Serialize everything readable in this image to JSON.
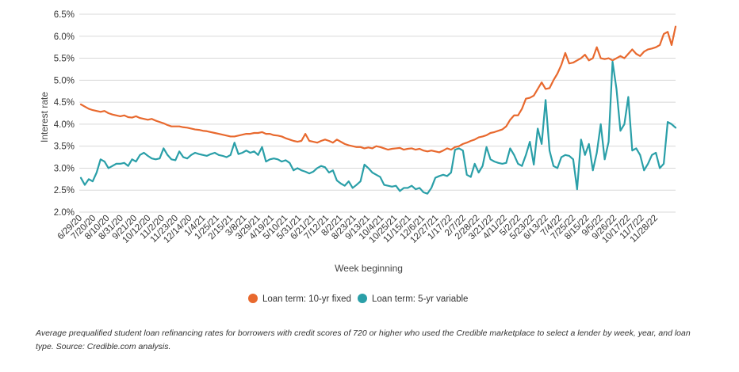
{
  "chart_data": {
    "type": "line",
    "xlabel": "Week beginning",
    "ylabel": "Interest rate",
    "ylim": [
      2.0,
      6.5
    ],
    "y_ticks": [
      "6.5%",
      "6.0%",
      "5.5%",
      "5.0%",
      "4.5%",
      "4.0%",
      "3.5%",
      "3.0%",
      "2.5%",
      "2.0%"
    ],
    "x_ticks": [
      "6/29/20",
      "7/20/20",
      "8/10/20",
      "8/31/20",
      "9/21/20",
      "10/12/20",
      "11/2/20",
      "11/23/20",
      "12/14/20",
      "1/4/21",
      "1/25/21",
      "2/15/21",
      "3/8/21",
      "3/29/21",
      "4/19/21",
      "5/10/21",
      "5/31/21",
      "6/21/21",
      "7/12/21",
      "8/2/21",
      "8/23/21",
      "9/13/21",
      "10/4/21",
      "10/25/21",
      "11/15/21",
      "12/6/21",
      "12/27/21",
      "1/17/22",
      "2/7/22",
      "2/28/22",
      "3/21/22",
      "4/11/22",
      "5/2/22",
      "5/23/22",
      "6/13/22",
      "7/4/22",
      "7/25/22",
      "8/15/22",
      "9/5/22",
      "9/26/22",
      "10/17/22",
      "11/7/22",
      "11/28/22"
    ],
    "grid": true,
    "legend_position": "bottom-center",
    "series": [
      {
        "name": "Loan term: 10-yr fixed",
        "color": "#E8692E",
        "values": [
          4.45,
          4.4,
          4.35,
          4.32,
          4.3,
          4.28,
          4.3,
          4.25,
          4.22,
          4.2,
          4.18,
          4.2,
          4.16,
          4.15,
          4.18,
          4.14,
          4.12,
          4.1,
          4.12,
          4.08,
          4.05,
          4.02,
          3.98,
          3.95,
          3.95,
          3.95,
          3.93,
          3.92,
          3.9,
          3.88,
          3.87,
          3.85,
          3.84,
          3.82,
          3.8,
          3.78,
          3.76,
          3.74,
          3.72,
          3.72,
          3.74,
          3.76,
          3.78,
          3.78,
          3.8,
          3.8,
          3.82,
          3.78,
          3.78,
          3.75,
          3.74,
          3.72,
          3.68,
          3.65,
          3.62,
          3.6,
          3.62,
          3.78,
          3.62,
          3.6,
          3.58,
          3.62,
          3.65,
          3.62,
          3.58,
          3.65,
          3.6,
          3.55,
          3.52,
          3.5,
          3.48,
          3.48,
          3.45,
          3.47,
          3.45,
          3.5,
          3.48,
          3.45,
          3.42,
          3.44,
          3.45,
          3.46,
          3.42,
          3.44,
          3.45,
          3.42,
          3.44,
          3.4,
          3.38,
          3.4,
          3.38,
          3.36,
          3.4,
          3.45,
          3.42,
          3.48,
          3.5,
          3.55,
          3.58,
          3.62,
          3.65,
          3.7,
          3.72,
          3.75,
          3.8,
          3.82,
          3.85,
          3.88,
          3.95,
          4.1,
          4.2,
          4.2,
          4.35,
          4.58,
          4.6,
          4.65,
          4.8,
          4.95,
          4.8,
          4.82,
          5.0,
          5.15,
          5.35,
          5.62,
          5.38,
          5.4,
          5.45,
          5.5,
          5.58,
          5.45,
          5.5,
          5.75,
          5.5,
          5.48,
          5.5,
          5.45,
          5.5,
          5.55,
          5.5,
          5.6,
          5.7,
          5.6,
          5.55,
          5.65,
          5.7,
          5.72,
          5.75,
          5.8,
          6.05,
          6.1,
          5.8,
          6.22
        ]
      },
      {
        "name": "Loan term: 5-yr variable",
        "color": "#2A9FA8",
        "values": [
          2.78,
          2.62,
          2.75,
          2.7,
          2.9,
          3.2,
          3.15,
          3.0,
          3.05,
          3.1,
          3.1,
          3.12,
          3.05,
          3.2,
          3.15,
          3.3,
          3.35,
          3.28,
          3.22,
          3.2,
          3.22,
          3.45,
          3.3,
          3.2,
          3.18,
          3.38,
          3.25,
          3.22,
          3.3,
          3.35,
          3.32,
          3.3,
          3.28,
          3.32,
          3.35,
          3.3,
          3.28,
          3.25,
          3.3,
          3.58,
          3.32,
          3.35,
          3.4,
          3.35,
          3.38,
          3.3,
          3.48,
          3.15,
          3.2,
          3.22,
          3.2,
          3.15,
          3.18,
          3.12,
          2.95,
          3.0,
          2.95,
          2.92,
          2.88,
          2.92,
          3.0,
          3.05,
          3.02,
          2.9,
          2.95,
          2.72,
          2.65,
          2.6,
          2.7,
          2.55,
          2.62,
          2.7,
          3.08,
          3.0,
          2.9,
          2.85,
          2.8,
          2.62,
          2.6,
          2.58,
          2.6,
          2.48,
          2.55,
          2.55,
          2.6,
          2.52,
          2.55,
          2.45,
          2.42,
          2.55,
          2.78,
          2.82,
          2.85,
          2.82,
          2.9,
          3.42,
          3.45,
          3.4,
          2.85,
          2.8,
          3.1,
          2.9,
          3.05,
          3.48,
          3.2,
          3.15,
          3.12,
          3.1,
          3.12,
          3.45,
          3.3,
          3.1,
          3.05,
          3.3,
          3.6,
          3.08,
          3.9,
          3.55,
          4.55,
          3.4,
          3.05,
          3.0,
          3.25,
          3.3,
          3.28,
          3.2,
          2.52,
          3.65,
          3.3,
          3.55,
          2.95,
          3.35,
          4.0,
          3.2,
          3.6,
          5.42,
          4.8,
          3.85,
          4.0,
          4.62,
          3.4,
          3.45,
          3.3,
          2.95,
          3.1,
          3.3,
          3.35,
          3.0,
          3.1,
          4.05,
          4.0,
          3.92
        ]
      }
    ]
  },
  "note": "Average prequalified student loan refinancing rates for borrowers with credit scores of 720 or higher who used the Credible marketplace to select a lender by week, year, and loan type. Source: Credible.com analysis."
}
